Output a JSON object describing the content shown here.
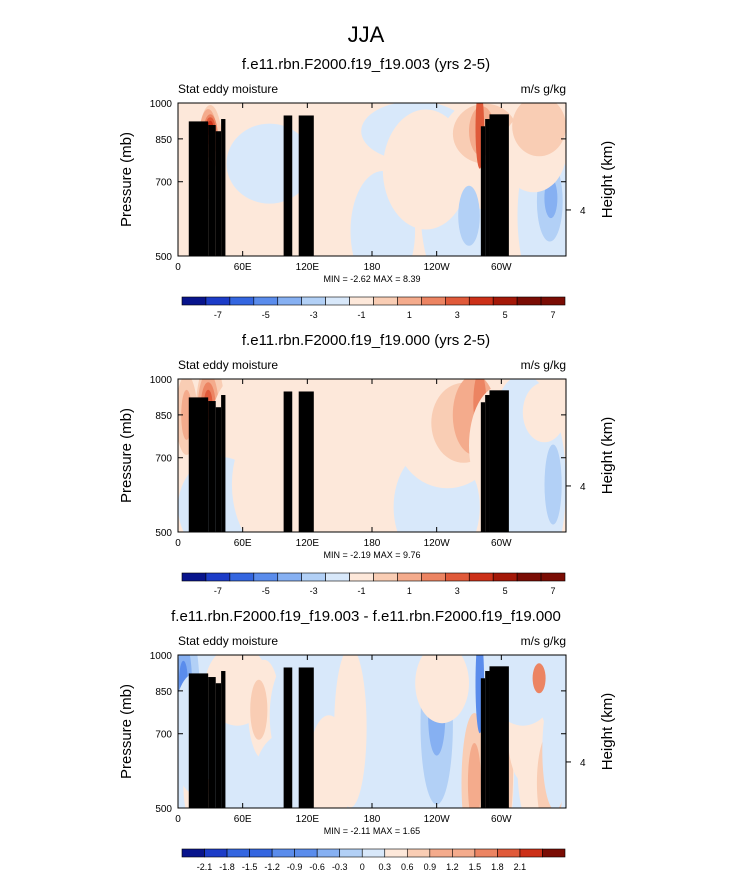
{
  "page": {
    "title": "JJA"
  },
  "colors": {
    "land": "#000000",
    "blues": [
      "#08148c",
      "#1c3cc8",
      "#3466e0",
      "#5a8cec",
      "#86b0f2",
      "#b2d0f6",
      "#d8e8fa"
    ],
    "reds": [
      "#fde8da",
      "#f9cdb4",
      "#f4ab8c",
      "#ec8462",
      "#e05a3a",
      "#cc3018",
      "#a41808",
      "#7a0c04"
    ]
  },
  "chart_data": [
    {
      "type": "contour",
      "title": "f.e11.rbn.F2000.f19_f19.003 (yrs 2-5)",
      "left_label": "Stat eddy moisture",
      "units": "m/s g/kg",
      "ylabel": "Pressure (mb)",
      "ylabel_right": "Height (km)",
      "y_ticks": [
        "500",
        "700",
        "850",
        "1000"
      ],
      "y_right_ticks": [
        "4"
      ],
      "x_ticks": [
        "0",
        "60E",
        "120E",
        "180",
        "120W",
        "60W"
      ],
      "x_range": [
        0,
        360
      ],
      "y_range_mb": [
        1000,
        500
      ],
      "stats": "MIN =  -2.62   MAX =   8.39",
      "colorbar_labels": [
        "-7",
        "-5",
        "-3",
        "-1",
        "1",
        "3",
        "5",
        "7"
      ]
    },
    {
      "type": "contour",
      "title": "f.e11.rbn.F2000.f19_f19.000 (yrs 2-5)",
      "left_label": "Stat eddy moisture",
      "units": "m/s g/kg",
      "ylabel": "Pressure (mb)",
      "ylabel_right": "Height (km)",
      "y_ticks": [
        "500",
        "700",
        "850",
        "1000"
      ],
      "y_right_ticks": [
        "4"
      ],
      "x_ticks": [
        "0",
        "60E",
        "120E",
        "180",
        "120W",
        "60W"
      ],
      "x_range": [
        0,
        360
      ],
      "y_range_mb": [
        1000,
        500
      ],
      "stats": "MIN =  -2.19   MAX =   9.76",
      "colorbar_labels": [
        "-7",
        "-5",
        "-3",
        "-1",
        "1",
        "3",
        "5",
        "7"
      ]
    },
    {
      "type": "contour",
      "title": "f.e11.rbn.F2000.f19_f19.003 - f.e11.rbn.F2000.f19_f19.000",
      "left_label": "Stat eddy moisture",
      "units": "m/s g/kg",
      "ylabel": "Pressure (mb)",
      "ylabel_right": "Height (km)",
      "y_ticks": [
        "500",
        "700",
        "850",
        "1000"
      ],
      "y_right_ticks": [
        "4"
      ],
      "x_ticks": [
        "0",
        "60E",
        "120E",
        "180",
        "120W",
        "60W"
      ],
      "x_range": [
        0,
        360
      ],
      "y_range_mb": [
        1000,
        500
      ],
      "stats": "MIN =  -2.11   MAX =   1.65",
      "colorbar_labels": [
        "-2.1",
        "-1.8",
        "-1.5",
        "-1.2",
        "-0.9",
        "-0.6",
        "-0.3",
        "0",
        "0.3",
        "0.6",
        "0.9",
        "1.2",
        "1.5",
        "1.8",
        "2.1"
      ]
    }
  ]
}
